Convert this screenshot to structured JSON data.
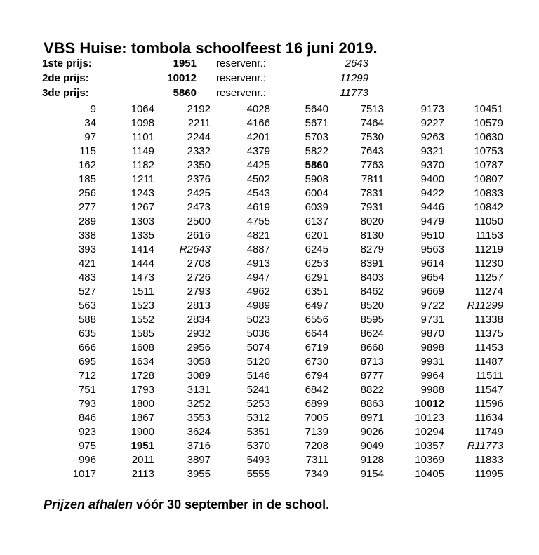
{
  "title": "VBS Huise: tombola schoolfeest 16 juni 2019.",
  "prizes": [
    {
      "label": "1ste prijs:",
      "number": "1951",
      "reserve_label": "reservenr.:",
      "reserve_number": "2643"
    },
    {
      "label": "2de prijs:",
      "number": "10012",
      "reserve_label": "reservenr.:",
      "reserve_number": "11299"
    },
    {
      "label": "3de prijs:",
      "number": "5860",
      "reserve_label": "reservenr.:",
      "reserve_number": "11773"
    }
  ],
  "numbers": [
    [
      "9",
      "1064",
      "2192",
      "4028",
      "5640",
      "7513",
      "9173",
      "10451"
    ],
    [
      "34",
      "1098",
      "2211",
      "4166",
      "5671",
      "7464",
      "9227",
      "10579"
    ],
    [
      "97",
      "1101",
      "2244",
      "4201",
      "5703",
      "7530",
      "9263",
      "10630"
    ],
    [
      "115",
      "1149",
      "2332",
      "4379",
      "5822",
      "7643",
      "9321",
      "10753"
    ],
    [
      "162",
      "1182",
      "2350",
      "4425",
      "5860",
      "7763",
      "9370",
      "10787"
    ],
    [
      "185",
      "1211",
      "2376",
      "4502",
      "5908",
      "7811",
      "9400",
      "10807"
    ],
    [
      "256",
      "1243",
      "2425",
      "4543",
      "6004",
      "7831",
      "9422",
      "10833"
    ],
    [
      "277",
      "1267",
      "2473",
      "4619",
      "6039",
      "7931",
      "9446",
      "10842"
    ],
    [
      "289",
      "1303",
      "2500",
      "4755",
      "6137",
      "8020",
      "9479",
      "11050"
    ],
    [
      "338",
      "1335",
      "2616",
      "4821",
      "6201",
      "8130",
      "9510",
      "11153"
    ],
    [
      "393",
      "1414",
      "R2643",
      "4887",
      "6245",
      "8279",
      "9563",
      "11219"
    ],
    [
      "421",
      "1444",
      "2708",
      "4913",
      "6253",
      "8391",
      "9614",
      "11230"
    ],
    [
      "483",
      "1473",
      "2726",
      "4947",
      "6291",
      "8403",
      "9654",
      "11257"
    ],
    [
      "527",
      "1511",
      "2793",
      "4962",
      "6351",
      "8462",
      "9669",
      "11274"
    ],
    [
      "563",
      "1523",
      "2813",
      "4989",
      "6497",
      "8520",
      "9722",
      "R11299"
    ],
    [
      "588",
      "1552",
      "2834",
      "5023",
      "6556",
      "8595",
      "9731",
      "11338"
    ],
    [
      "635",
      "1585",
      "2932",
      "5036",
      "6644",
      "8624",
      "9870",
      "11375"
    ],
    [
      "666",
      "1608",
      "2956",
      "5074",
      "6719",
      "8668",
      "9898",
      "11453"
    ],
    [
      "695",
      "1634",
      "3058",
      "5120",
      "6730",
      "8713",
      "9931",
      "11487"
    ],
    [
      "712",
      "1728",
      "3089",
      "5146",
      "6794",
      "8777",
      "9964",
      "11511"
    ],
    [
      "751",
      "1793",
      "3131",
      "5241",
      "6842",
      "8822",
      "9988",
      "11547"
    ],
    [
      "793",
      "1800",
      "3252",
      "5253",
      "6899",
      "8863",
      "10012",
      "11596"
    ],
    [
      "846",
      "1867",
      "3553",
      "5312",
      "7005",
      "8971",
      "10123",
      "11634"
    ],
    [
      "923",
      "1900",
      "3624",
      "5351",
      "7139",
      "9026",
      "10294",
      "11749"
    ],
    [
      "975",
      "1951",
      "3716",
      "5370",
      "7208",
      "9049",
      "10357",
      "R11773"
    ],
    [
      "996",
      "2011",
      "3897",
      "5493",
      "7311",
      "9128",
      "10369",
      "11833"
    ],
    [
      "1017",
      "2113",
      "3955",
      "5555",
      "7349",
      "9154",
      "10405",
      "11995"
    ]
  ],
  "footer": {
    "emphasis": "Prijzen afhalen",
    "rest": " vóór 30 september in de school."
  }
}
